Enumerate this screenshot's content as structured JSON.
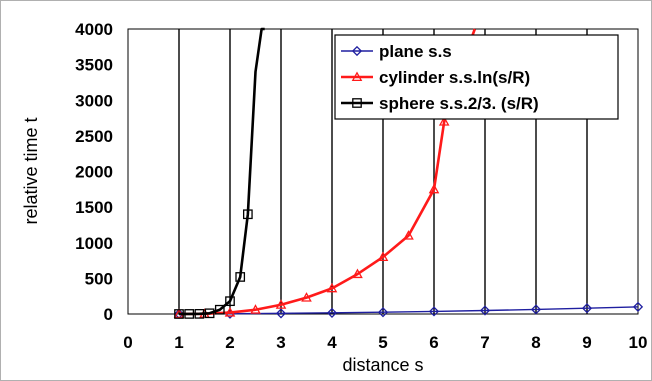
{
  "chart_data": {
    "type": "line",
    "xlabel": "distance s",
    "ylabel": "relative time t",
    "xlim": [
      0,
      10
    ],
    "ylim": [
      0,
      4000
    ],
    "x_ticks": [
      0,
      1,
      2,
      3,
      4,
      5,
      6,
      7,
      8,
      9,
      10
    ],
    "y_ticks": [
      0,
      500,
      1000,
      1500,
      2000,
      2500,
      3000,
      3500,
      4000
    ],
    "grid": "vertical",
    "legend_position": "top-right",
    "series": [
      {
        "name": "plane s.s",
        "color": "#1f1fa0",
        "marker": "diamond",
        "x": [
          1,
          2,
          3,
          4,
          5,
          6,
          7,
          8,
          9,
          10
        ],
        "y": [
          1,
          4,
          9,
          16,
          25,
          36,
          49,
          64,
          81,
          100
        ]
      },
      {
        "name": "cylinder s.s.ln(s/R)",
        "color": "#ff1a1a",
        "marker": "triangle",
        "x": [
          1,
          1.5,
          2,
          2.5,
          3,
          3.5,
          4,
          4.5,
          5,
          5.5,
          6,
          6.2,
          6.5,
          6.8
        ],
        "y": [
          0,
          3,
          20,
          60,
          130,
          230,
          360,
          560,
          800,
          1100,
          1750,
          2700,
          3400,
          4000
        ]
      },
      {
        "name": "sphere s.s.2/3. (s/R)",
        "color": "#000000",
        "marker": "square",
        "x": [
          1,
          1.2,
          1.4,
          1.6,
          1.8,
          2.0,
          2.2,
          2.35,
          2.5,
          2.62,
          2.68
        ],
        "y": [
          0,
          1,
          2,
          10,
          60,
          180,
          520,
          1400,
          3400,
          4000,
          4000
        ]
      }
    ]
  }
}
